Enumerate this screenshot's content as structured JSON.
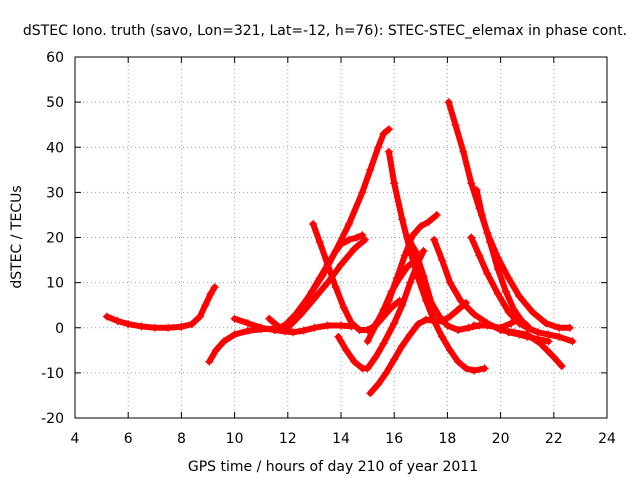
{
  "chart_data": {
    "type": "line",
    "title": "dSTEC Iono. truth (savo, Lon=321, Lat=-12, h=76): STEC-STEC_elemax in phase cont.",
    "xlabel": "GPS time / hours of day 210 of year 2011",
    "ylabel": "dSTEC  / TECUs",
    "xlim": [
      4,
      24
    ],
    "ylim": [
      -20,
      60
    ],
    "xticks": [
      4,
      6,
      8,
      10,
      12,
      14,
      16,
      18,
      20,
      22,
      24
    ],
    "yticks": [
      -20,
      -10,
      0,
      10,
      20,
      30,
      40,
      50,
      60
    ],
    "grid": true,
    "color": "#ff0000",
    "marker": "plus",
    "series": [
      {
        "x": [
          5.2,
          5.6,
          6.0,
          6.5,
          7.0,
          7.5,
          8.0,
          8.4,
          8.7,
          8.9,
          9.1,
          9.25
        ],
        "y": [
          2.5,
          1.5,
          0.8,
          0.3,
          0.0,
          0.0,
          0.2,
          0.8,
          2.5,
          5.0,
          7.5,
          9.0
        ]
      },
      {
        "x": [
          9.05,
          9.3,
          9.6,
          10.0,
          10.5,
          11.0,
          11.5,
          12.0
        ],
        "y": [
          -7.5,
          -5.0,
          -3.0,
          -1.5,
          -0.7,
          -0.3,
          -0.2,
          -0.2
        ]
      },
      {
        "x": [
          10.0,
          10.5,
          11.0,
          11.5,
          11.9,
          12.2,
          12.6,
          13.0,
          13.5,
          14.0,
          14.4
        ],
        "y": [
          2.0,
          1.0,
          0.0,
          -0.5,
          -0.8,
          -1.0,
          -0.6,
          0.0,
          0.5,
          0.5,
          0.3
        ]
      },
      {
        "x": [
          11.3,
          11.7,
          12.0,
          12.3,
          12.6,
          12.9,
          13.2,
          13.5,
          13.8,
          14.0,
          14.3,
          14.6,
          14.8
        ],
        "y": [
          2.0,
          0.0,
          1.0,
          2.5,
          5.0,
          8.0,
          11.0,
          14.0,
          17.0,
          18.5,
          19.5,
          20.0,
          20.5
        ]
      },
      {
        "x": [
          11.8,
          12.3,
          12.8,
          13.3,
          13.8,
          14.3,
          14.8,
          15.1,
          15.4,
          15.6,
          15.8
        ],
        "y": [
          0.0,
          3.0,
          7.0,
          11.5,
          17.0,
          23.0,
          30.0,
          35.0,
          40.0,
          43.0,
          44.0
        ]
      },
      {
        "x": [
          12.0,
          12.5,
          13.0,
          13.5,
          14.0,
          14.5,
          14.9
        ],
        "y": [
          0.0,
          3.0,
          6.5,
          10.0,
          14.0,
          17.5,
          19.5
        ]
      },
      {
        "x": [
          12.95,
          13.2,
          13.5,
          13.8,
          14.1,
          14.4,
          14.7,
          15.0,
          15.3,
          15.6,
          15.9,
          16.2
        ],
        "y": [
          23.0,
          19.0,
          14.0,
          9.0,
          4.5,
          1.0,
          -0.5,
          -0.5,
          0.5,
          2.5,
          4.5,
          6.0
        ]
      },
      {
        "x": [
          13.9,
          14.2,
          14.5,
          14.8,
          15.0,
          15.3,
          15.6,
          16.0,
          16.3,
          16.6,
          16.9,
          17.1
        ],
        "y": [
          -2.0,
          -5.0,
          -7.5,
          -9.0,
          -9.0,
          -6.5,
          -3.5,
          1.0,
          5.0,
          10.0,
          14.5,
          17.0
        ]
      },
      {
        "x": [
          15.1,
          15.4,
          15.7,
          16.0,
          16.3,
          16.6,
          16.9,
          17.2,
          17.5,
          17.8,
          18.1,
          18.4,
          18.7
        ],
        "y": [
          -14.5,
          -12.5,
          -10.0,
          -7.0,
          -4.0,
          -1.5,
          0.8,
          1.8,
          1.5,
          1.5,
          2.5,
          4.0,
          5.5
        ]
      },
      {
        "x": [
          15.0,
          15.3,
          15.6,
          15.9,
          16.2,
          16.5,
          16.7,
          16.9
        ],
        "y": [
          -3.0,
          0.5,
          4.0,
          8.0,
          11.0,
          13.5,
          14.5,
          14.0
        ]
      },
      {
        "x": [
          15.2,
          15.5,
          15.8,
          16.1,
          16.4,
          16.7,
          17.0,
          17.3,
          17.6
        ],
        "y": [
          0.0,
          2.5,
          6.0,
          11.0,
          16.0,
          20.5,
          22.5,
          23.5,
          25.0
        ]
      },
      {
        "x": [
          15.8,
          16.0,
          16.3,
          16.6,
          16.9,
          17.2,
          17.5,
          17.8,
          18.1,
          18.4,
          18.7,
          19.0,
          19.4
        ],
        "y": [
          39.0,
          32.0,
          24.0,
          17.0,
          11.0,
          6.0,
          1.5,
          -2.0,
          -5.0,
          -7.5,
          -9.0,
          -9.5,
          -9.0
        ]
      },
      {
        "x": [
          16.5,
          16.8,
          17.1,
          17.4,
          17.7,
          18.0,
          18.4,
          18.8,
          19.2
        ],
        "y": [
          20.0,
          17.0,
          11.5,
          5.5,
          2.5,
          0.5,
          -0.5,
          0.0,
          0.5
        ]
      },
      {
        "x": [
          17.5,
          17.8,
          18.1,
          18.5,
          19.0,
          19.5,
          20.0,
          20.5,
          21.0,
          21.5,
          22.0,
          22.3
        ],
        "y": [
          19.5,
          15.0,
          10.0,
          6.0,
          3.0,
          1.0,
          -0.5,
          -1.0,
          -1.5,
          -3.5,
          -6.5,
          -8.5
        ]
      },
      {
        "x": [
          18.05,
          18.3,
          18.6,
          18.9,
          19.2,
          19.5,
          19.9,
          20.3,
          20.7,
          21.2,
          21.7,
          22.2,
          22.6
        ],
        "y": [
          50.0,
          45.0,
          39.0,
          32.0,
          26.5,
          21.0,
          15.5,
          11.0,
          7.0,
          3.5,
          1.0,
          0.0,
          0.0
        ]
      },
      {
        "x": [
          18.9,
          19.2,
          19.5,
          19.9,
          20.3,
          20.7,
          21.0,
          21.4,
          21.8,
          22.2,
          22.7
        ],
        "y": [
          20.0,
          16.0,
          12.0,
          7.5,
          3.5,
          1.0,
          0.0,
          -1.0,
          -1.5,
          -2.0,
          -3.0
        ]
      },
      {
        "x": [
          19.1,
          19.3,
          19.6,
          19.9,
          20.2,
          20.5,
          20.8,
          21.0
        ],
        "y": [
          30.5,
          25.0,
          19.0,
          13.0,
          8.0,
          4.0,
          1.5,
          0.0
        ]
      },
      {
        "x": [
          19.0,
          19.5,
          20.0,
          20.4,
          20.7,
          21.0
        ],
        "y": [
          0.5,
          0.5,
          0.0,
          1.0,
          2.0,
          0.5
        ]
      },
      {
        "x": [
          20.3,
          20.7,
          21.0,
          21.4,
          21.8
        ],
        "y": [
          -1.0,
          -1.5,
          -2.0,
          -2.5,
          -3.0
        ]
      }
    ]
  }
}
